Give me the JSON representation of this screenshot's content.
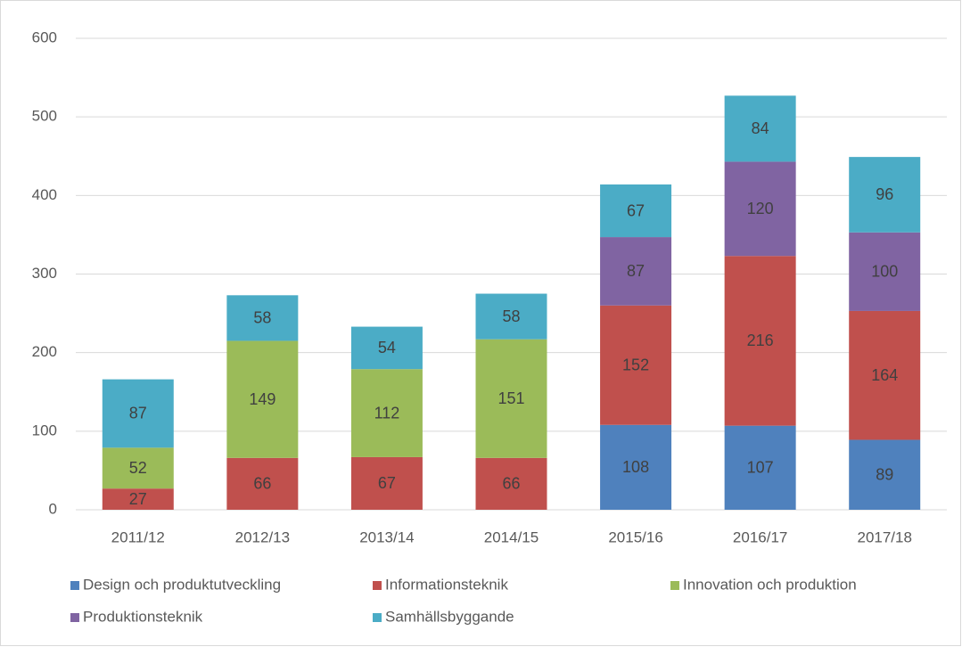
{
  "chart_data": {
    "type": "stacked_bar",
    "categories": [
      "2011/12",
      "2012/13",
      "2013/14",
      "2014/15",
      "2015/16",
      "2016/17",
      "2017/18"
    ],
    "series": [
      {
        "name": "Design och produktutveckling",
        "color": "#4f81bd",
        "values": [
          null,
          null,
          null,
          null,
          108,
          107,
          89
        ]
      },
      {
        "name": "Informationsteknik",
        "color": "#c0504d",
        "values": [
          27,
          66,
          67,
          66,
          152,
          216,
          164
        ]
      },
      {
        "name": "Innovation och produktion",
        "color": "#9bbb59",
        "values": [
          52,
          149,
          112,
          151,
          null,
          null,
          null
        ]
      },
      {
        "name": "Produktionsteknik",
        "color": "#8064a2",
        "values": [
          null,
          null,
          null,
          null,
          87,
          120,
          100
        ]
      },
      {
        "name": "Samhällsbyggande",
        "color": "#4bacc6",
        "values": [
          87,
          58,
          54,
          58,
          67,
          84,
          96
        ]
      }
    ],
    "ylim": [
      0,
      600
    ],
    "yticks": [
      0,
      100,
      200,
      300,
      400,
      500,
      600
    ],
    "grid": true,
    "legend": "bottom"
  }
}
